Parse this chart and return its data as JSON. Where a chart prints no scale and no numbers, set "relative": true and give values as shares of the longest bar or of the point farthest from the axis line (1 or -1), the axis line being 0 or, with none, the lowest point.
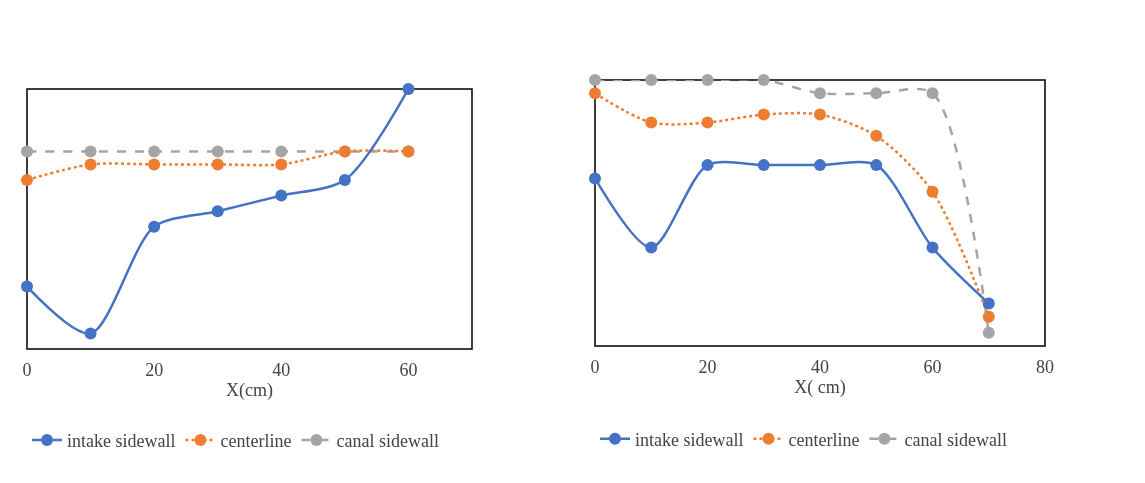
{
  "chart_data": [
    {
      "type": "line",
      "xlabel": "X(cm)",
      "relative": true,
      "x": [
        0,
        10,
        20,
        30,
        40,
        50,
        60
      ],
      "xlim": [
        0,
        70
      ],
      "xticks": [
        0,
        20,
        40,
        60
      ],
      "grid": false,
      "legend": "bottom",
      "marker": "circle",
      "series": [
        {
          "name": "intake sidewall",
          "color": "#4472c4",
          "line_style": "solid",
          "values": [
            0.24,
            0.06,
            0.47,
            0.53,
            0.59,
            0.65,
            1
          ]
        },
        {
          "name": "centerline",
          "color": "#ed7d31",
          "line_style": "dotted",
          "values": [
            0.65,
            0.71,
            0.71,
            0.71,
            0.71,
            0.76,
            0.76
          ]
        },
        {
          "name": "canal sidewall",
          "color": "#a5a5a5",
          "line_style": "dashed",
          "values": [
            0.76,
            0.76,
            0.76,
            0.76,
            0.76,
            0.76,
            0.76
          ]
        }
      ]
    },
    {
      "type": "line",
      "xlabel": "X( cm)",
      "relative": true,
      "x": [
        0,
        10,
        20,
        30,
        40,
        50,
        60,
        70
      ],
      "xlim": [
        0,
        80
      ],
      "xticks": [
        0,
        20,
        40,
        60,
        80
      ],
      "grid": false,
      "legend": "bottom",
      "marker": "circle",
      "series": [
        {
          "name": "intake sidewall",
          "color": "#4472c4",
          "line_style": "solid",
          "values": [
            0.63,
            0.37,
            0.68,
            0.68,
            0.68,
            0.68,
            0.37,
            0.16
          ]
        },
        {
          "name": "centerline",
          "color": "#ed7d31",
          "line_style": "dotted",
          "values": [
            0.95,
            0.84,
            0.84,
            0.87,
            0.87,
            0.79,
            0.58,
            0.11
          ]
        },
        {
          "name": "canal sidewall",
          "color": "#a5a5a5",
          "line_style": "dashed",
          "values": [
            1,
            1,
            1,
            1,
            0.95,
            0.95,
            0.95,
            0.05
          ]
        }
      ]
    }
  ]
}
